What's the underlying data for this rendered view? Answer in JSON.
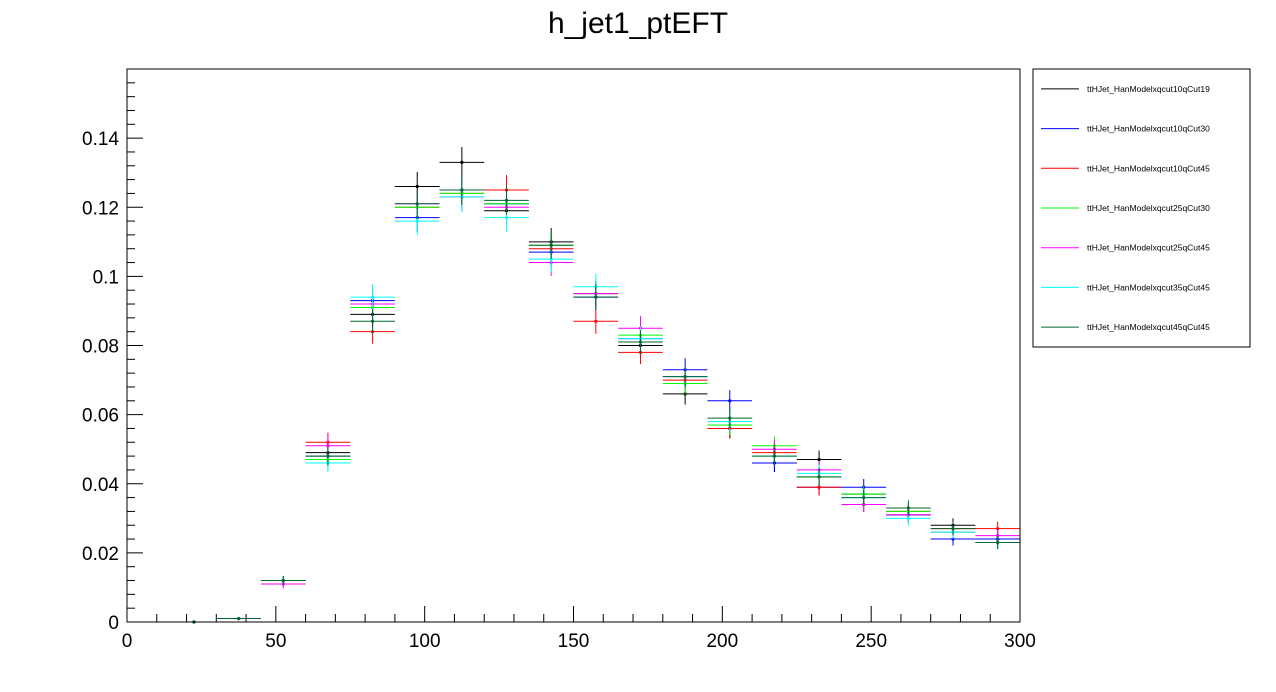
{
  "chart_data": {
    "type": "scatter",
    "title": "h_jet1_ptEFT",
    "xlabel": "",
    "ylabel": "",
    "xlim": [
      0,
      300
    ],
    "ylim": [
      0,
      0.16
    ],
    "bin_width": 15,
    "x_ticks": [
      "0",
      "50",
      "100",
      "150",
      "200",
      "250",
      "300"
    ],
    "y_ticks": [
      "0",
      "0.02",
      "0.04",
      "0.06",
      "0.08",
      "0.1",
      "0.12",
      "0.14"
    ],
    "legend_position": "right",
    "x": [
      22.5,
      37.5,
      52.5,
      67.5,
      82.5,
      97.5,
      112.5,
      127.5,
      142.5,
      157.5,
      172.5,
      187.5,
      202.5,
      217.5,
      232.5,
      247.5,
      262.5,
      277.5,
      292.5
    ],
    "series": [
      {
        "name": "ttHJet_HanModelxqcut10qCut19",
        "color": "#000000",
        "values": [
          0.0,
          0.001,
          0.012,
          0.049,
          0.089,
          0.126,
          0.133,
          0.119,
          0.11,
          0.095,
          0.08,
          0.066,
          0.056,
          0.046,
          0.047,
          0.037,
          0.031,
          0.028,
          0.024
        ],
        "errors": [
          0.0003,
          0.0004,
          0.0013,
          0.0027,
          0.0036,
          0.0042,
          0.0044,
          0.0041,
          0.004,
          0.0037,
          0.0034,
          0.0031,
          0.0029,
          0.0026,
          0.0026,
          0.0023,
          0.0021,
          0.002,
          0.0019
        ]
      },
      {
        "name": "ttHJet_HanModelxqcut10qCut30",
        "color": "#0000ff",
        "values": [
          0.0,
          0.001,
          0.012,
          0.048,
          0.093,
          0.117,
          0.125,
          0.121,
          0.107,
          0.094,
          0.082,
          0.073,
          0.064,
          0.046,
          0.039,
          0.039,
          0.031,
          0.024,
          0.024
        ],
        "errors": [
          0.0003,
          0.0004,
          0.0013,
          0.0027,
          0.0037,
          0.0041,
          0.0043,
          0.0042,
          0.0039,
          0.0037,
          0.0035,
          0.0033,
          0.0031,
          0.0026,
          0.0024,
          0.0024,
          0.0021,
          0.0019,
          0.0019
        ]
      },
      {
        "name": "ttHJet_HanModelxqcut10qCut45",
        "color": "#ff0000",
        "values": [
          0.0,
          0.001,
          0.012,
          0.052,
          0.084,
          0.12,
          0.124,
          0.125,
          0.108,
          0.087,
          0.078,
          0.07,
          0.056,
          0.049,
          0.039,
          0.034,
          0.032,
          0.027,
          0.027
        ],
        "errors": [
          0.0003,
          0.0004,
          0.0013,
          0.0028,
          0.0035,
          0.0042,
          0.0043,
          0.0043,
          0.004,
          0.0036,
          0.0034,
          0.0032,
          0.0029,
          0.0027,
          0.0024,
          0.0022,
          0.0022,
          0.002,
          0.002
        ]
      },
      {
        "name": "ttHJet_HanModelxqcut25qCut30",
        "color": "#00ff00",
        "values": [
          0.0,
          0.001,
          0.012,
          0.047,
          0.091,
          0.12,
          0.124,
          0.121,
          0.109,
          0.095,
          0.083,
          0.069,
          0.057,
          0.051,
          0.042,
          0.037,
          0.032,
          0.026,
          0.023
        ],
        "errors": [
          0.0003,
          0.0004,
          0.0013,
          0.0026,
          0.0036,
          0.0042,
          0.0043,
          0.0042,
          0.004,
          0.0037,
          0.0035,
          0.0032,
          0.0029,
          0.0027,
          0.0025,
          0.0023,
          0.0022,
          0.002,
          0.0019
        ]
      },
      {
        "name": "ttHJet_HanModelxqcut25qCut45",
        "color": "#ff00ff",
        "values": [
          0.0,
          0.001,
          0.011,
          0.051,
          0.092,
          0.121,
          0.123,
          0.12,
          0.104,
          0.095,
          0.085,
          0.071,
          0.058,
          0.05,
          0.044,
          0.034,
          0.031,
          0.026,
          0.025
        ],
        "errors": [
          0.0003,
          0.0004,
          0.0013,
          0.0028,
          0.0036,
          0.0042,
          0.0043,
          0.0042,
          0.0039,
          0.0037,
          0.0035,
          0.0032,
          0.003,
          0.0027,
          0.0025,
          0.0022,
          0.0021,
          0.0019,
          0.0019
        ]
      },
      {
        "name": "ttHJet_HanModelxqcut35qCut45",
        "color": "#00ffff",
        "values": [
          0.0,
          0.001,
          0.012,
          0.046,
          0.094,
          0.116,
          0.123,
          0.117,
          0.105,
          0.097,
          0.082,
          0.071,
          0.058,
          0.048,
          0.043,
          0.036,
          0.03,
          0.026,
          0.023
        ],
        "errors": [
          0.0003,
          0.0004,
          0.0013,
          0.0026,
          0.0037,
          0.0041,
          0.0043,
          0.0041,
          0.0039,
          0.0038,
          0.0035,
          0.0032,
          0.0029,
          0.0027,
          0.0025,
          0.0023,
          0.0021,
          0.0019,
          0.0018
        ]
      },
      {
        "name": "ttHJet_HanModelxqcut45qCut45",
        "color": "#006633",
        "values": [
          0.0,
          0.001,
          0.012,
          0.048,
          0.087,
          0.121,
          0.125,
          0.122,
          0.109,
          0.094,
          0.081,
          0.071,
          0.059,
          0.048,
          0.042,
          0.036,
          0.033,
          0.027,
          0.023
        ],
        "errors": [
          0.0003,
          0.0004,
          0.0013,
          0.0027,
          0.0036,
          0.0042,
          0.0043,
          0.0042,
          0.004,
          0.0037,
          0.0034,
          0.0032,
          0.003,
          0.0027,
          0.0025,
          0.0023,
          0.0022,
          0.002,
          0.0019
        ]
      }
    ]
  }
}
